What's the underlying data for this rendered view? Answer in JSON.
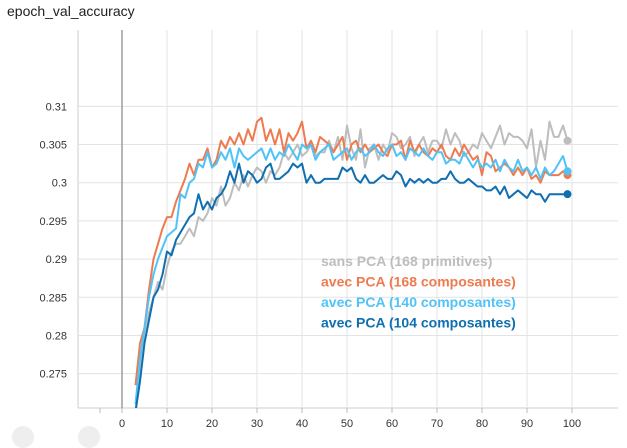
{
  "chart_data": {
    "type": "line",
    "title": "epoch_val_accuracy",
    "xlabel": "",
    "ylabel": "",
    "xlim": [
      -10,
      101
    ],
    "ylim": [
      0.2705,
      0.3145
    ],
    "x_ticks": [
      0,
      10,
      20,
      30,
      40,
      50,
      60,
      70,
      80,
      90,
      100
    ],
    "y_ticks": [
      0.275,
      0.28,
      0.285,
      0.29,
      0.295,
      0.3,
      0.305,
      0.31
    ],
    "y_tick_labels": [
      "0.275",
      "0.28",
      "0.285",
      "0.29",
      "0.295",
      "0.3",
      "0.305",
      "0.31"
    ],
    "grid": {
      "horizontal": true,
      "vertical": true
    },
    "vertical_marker_x": 0,
    "legend_position": "center-right inside plot",
    "series": [
      {
        "name": "sans PCA (168 primitives)",
        "color": "#bdbdbd",
        "x": [
          3,
          4,
          5,
          6,
          7,
          8,
          9,
          10,
          11,
          12,
          13,
          14,
          15,
          16,
          17,
          18,
          19,
          20,
          21,
          22,
          23,
          24,
          25,
          26,
          27,
          28,
          29,
          30,
          31,
          32,
          33,
          34,
          35,
          36,
          37,
          38,
          39,
          40,
          41,
          42,
          43,
          44,
          45,
          46,
          47,
          48,
          49,
          50,
          51,
          52,
          53,
          54,
          55,
          56,
          57,
          58,
          59,
          60,
          61,
          62,
          63,
          64,
          65,
          66,
          67,
          68,
          69,
          70,
          71,
          72,
          73,
          74,
          75,
          76,
          77,
          78,
          79,
          80,
          81,
          82,
          83,
          84,
          85,
          86,
          87,
          88,
          89,
          90,
          91,
          92,
          93,
          94,
          95,
          96,
          97,
          98,
          99
        ],
        "y": [
          0.27,
          0.276,
          0.28,
          0.283,
          0.285,
          0.287,
          0.286,
          0.289,
          0.291,
          0.292,
          0.292,
          0.293,
          0.294,
          0.293,
          0.2955,
          0.295,
          0.296,
          0.298,
          0.297,
          0.2995,
          0.297,
          0.298,
          0.3,
          0.299,
          0.301,
          0.2995,
          0.301,
          0.302,
          0.3015,
          0.3,
          0.3015,
          0.301,
          0.302,
          0.304,
          0.303,
          0.304,
          0.305,
          0.3035,
          0.304,
          0.305,
          0.3035,
          0.304,
          0.304,
          0.3055,
          0.304,
          0.306,
          0.303,
          0.3075,
          0.3045,
          0.303,
          0.307,
          0.302,
          0.3045,
          0.305,
          0.303,
          0.305,
          0.304,
          0.3065,
          0.306,
          0.3045,
          0.305,
          0.306,
          0.3035,
          0.305,
          0.306,
          0.304,
          0.3055,
          0.3055,
          0.3045,
          0.307,
          0.305,
          0.3065,
          0.3055,
          0.3035,
          0.304,
          0.305,
          0.3045,
          0.3065,
          0.3055,
          0.3045,
          0.306,
          0.3075,
          0.305,
          0.3065,
          0.306,
          0.306,
          0.3055,
          0.3045,
          0.307,
          0.302,
          0.3055,
          0.303,
          0.308,
          0.306,
          0.306,
          0.3075,
          0.3055
        ]
      },
      {
        "name": "avec PCA (168 composantes)",
        "color": "#ef7a4f",
        "x": [
          3,
          4,
          5,
          6,
          7,
          8,
          9,
          10,
          11,
          12,
          13,
          14,
          15,
          16,
          17,
          18,
          19,
          20,
          21,
          22,
          23,
          24,
          25,
          26,
          27,
          28,
          29,
          30,
          31,
          32,
          33,
          34,
          35,
          36,
          37,
          38,
          39,
          40,
          41,
          42,
          43,
          44,
          45,
          46,
          47,
          48,
          49,
          50,
          51,
          52,
          53,
          54,
          55,
          56,
          57,
          58,
          59,
          60,
          61,
          62,
          63,
          64,
          65,
          66,
          67,
          68,
          69,
          70,
          71,
          72,
          73,
          74,
          75,
          76,
          77,
          78,
          79,
          80,
          81,
          82,
          83,
          84,
          85,
          86,
          87,
          88,
          89,
          90,
          91,
          92,
          93,
          94,
          95,
          96,
          97,
          98,
          99
        ],
        "y": [
          0.2735,
          0.279,
          0.281,
          0.286,
          0.29,
          0.292,
          0.294,
          0.2955,
          0.2955,
          0.2975,
          0.299,
          0.3005,
          0.3025,
          0.301,
          0.303,
          0.303,
          0.3045,
          0.302,
          0.303,
          0.3055,
          0.3045,
          0.306,
          0.305,
          0.3065,
          0.305,
          0.307,
          0.3055,
          0.308,
          0.3085,
          0.3055,
          0.307,
          0.305,
          0.307,
          0.304,
          0.3065,
          0.3055,
          0.3065,
          0.308,
          0.3045,
          0.3055,
          0.304,
          0.306,
          0.3055,
          0.305,
          0.304,
          0.305,
          0.306,
          0.303,
          0.305,
          0.3055,
          0.304,
          0.305,
          0.304,
          0.3045,
          0.305,
          0.304,
          0.3035,
          0.305,
          0.305,
          0.3055,
          0.303,
          0.3055,
          0.304,
          0.305,
          0.304,
          0.3035,
          0.3045,
          0.304,
          0.305,
          0.3035,
          0.303,
          0.3045,
          0.3035,
          0.305,
          0.304,
          0.303,
          0.3035,
          0.301,
          0.304,
          0.3035,
          0.3015,
          0.302,
          0.3025,
          0.302,
          0.301,
          0.302,
          0.301,
          0.302,
          0.3005,
          0.301,
          0.3,
          0.3015,
          0.301,
          0.301,
          0.301,
          0.3015,
          0.301
        ]
      },
      {
        "name": "avec PCA (140 composantes)",
        "color": "#4fc3f7",
        "x": [
          3,
          4,
          5,
          6,
          7,
          8,
          9,
          10,
          11,
          12,
          13,
          14,
          15,
          16,
          17,
          18,
          19,
          20,
          21,
          22,
          23,
          24,
          25,
          26,
          27,
          28,
          29,
          30,
          31,
          32,
          33,
          34,
          35,
          36,
          37,
          38,
          39,
          40,
          41,
          42,
          43,
          44,
          45,
          46,
          47,
          48,
          49,
          50,
          51,
          52,
          53,
          54,
          55,
          56,
          57,
          58,
          59,
          60,
          61,
          62,
          63,
          64,
          65,
          66,
          67,
          68,
          69,
          70,
          71,
          72,
          73,
          74,
          75,
          76,
          77,
          78,
          79,
          80,
          81,
          82,
          83,
          84,
          85,
          86,
          87,
          88,
          89,
          90,
          91,
          92,
          93,
          94,
          95,
          96,
          97,
          98,
          99
        ],
        "y": [
          0.271,
          0.277,
          0.281,
          0.285,
          0.288,
          0.29,
          0.2915,
          0.293,
          0.2935,
          0.294,
          0.2985,
          0.298,
          0.3,
          0.3005,
          0.3025,
          0.302,
          0.304,
          0.302,
          0.3025,
          0.304,
          0.303,
          0.3045,
          0.302,
          0.3045,
          0.3035,
          0.303,
          0.3035,
          0.304,
          0.3045,
          0.303,
          0.3045,
          0.303,
          0.304,
          0.3035,
          0.305,
          0.304,
          0.303,
          0.305,
          0.3045,
          0.305,
          0.303,
          0.304,
          0.3045,
          0.305,
          0.303,
          0.3035,
          0.304,
          0.3045,
          0.303,
          0.304,
          0.3045,
          0.3035,
          0.304,
          0.305,
          0.304,
          0.3035,
          0.3045,
          0.305,
          0.3035,
          0.304,
          0.303,
          0.3045,
          0.304,
          0.3035,
          0.3045,
          0.3035,
          0.303,
          0.304,
          0.304,
          0.3025,
          0.303,
          0.303,
          0.3025,
          0.304,
          0.303,
          0.302,
          0.303,
          0.302,
          0.3025,
          0.302,
          0.303,
          0.3015,
          0.303,
          0.302,
          0.3015,
          0.303,
          0.3015,
          0.302,
          0.301,
          0.302,
          0.3005,
          0.302,
          0.301,
          0.3015,
          0.3025,
          0.3035,
          0.3015
        ]
      },
      {
        "name": "avec PCA (104 composantes)",
        "color": "#0f6fb0",
        "x": [
          3,
          4,
          5,
          6,
          7,
          8,
          9,
          10,
          11,
          12,
          13,
          14,
          15,
          16,
          17,
          18,
          19,
          20,
          21,
          22,
          23,
          24,
          25,
          26,
          27,
          28,
          29,
          30,
          31,
          32,
          33,
          34,
          35,
          36,
          37,
          38,
          39,
          40,
          41,
          42,
          43,
          44,
          45,
          46,
          47,
          48,
          49,
          50,
          51,
          52,
          53,
          54,
          55,
          56,
          57,
          58,
          59,
          60,
          61,
          62,
          63,
          64,
          65,
          66,
          67,
          68,
          69,
          70,
          71,
          72,
          73,
          74,
          75,
          76,
          77,
          78,
          79,
          80,
          81,
          82,
          83,
          84,
          85,
          86,
          87,
          88,
          89,
          90,
          91,
          92,
          93,
          94,
          95,
          96,
          97,
          98,
          99
        ],
        "y": [
          0.27,
          0.274,
          0.279,
          0.282,
          0.285,
          0.286,
          0.288,
          0.291,
          0.2905,
          0.2925,
          0.2935,
          0.2945,
          0.2955,
          0.296,
          0.2985,
          0.2965,
          0.2975,
          0.2965,
          0.298,
          0.2985,
          0.2995,
          0.3015,
          0.3,
          0.3025,
          0.3,
          0.3015,
          0.301,
          0.3,
          0.3005,
          0.302,
          0.3025,
          0.3005,
          0.3005,
          0.301,
          0.3015,
          0.3025,
          0.302,
          0.3025,
          0.3,
          0.301,
          0.3,
          0.3,
          0.3005,
          0.3005,
          0.3005,
          0.3005,
          0.302,
          0.3015,
          0.302,
          0.3005,
          0.3,
          0.301,
          0.3,
          0.3,
          0.3005,
          0.301,
          0.3005,
          0.3005,
          0.3015,
          0.301,
          0.2995,
          0.3005,
          0.3,
          0.3005,
          0.3,
          0.3005,
          0.3,
          0.3,
          0.3005,
          0.3005,
          0.3015,
          0.3005,
          0.3,
          0.3,
          0.3005,
          0.3,
          0.2995,
          0.2995,
          0.299,
          0.299,
          0.2995,
          0.2985,
          0.2995,
          0.298,
          0.2985,
          0.299,
          0.2985,
          0.298,
          0.299,
          0.2985,
          0.2985,
          0.2975,
          0.2985,
          0.2985,
          0.2985,
          0.2985,
          0.2985
        ]
      }
    ]
  }
}
